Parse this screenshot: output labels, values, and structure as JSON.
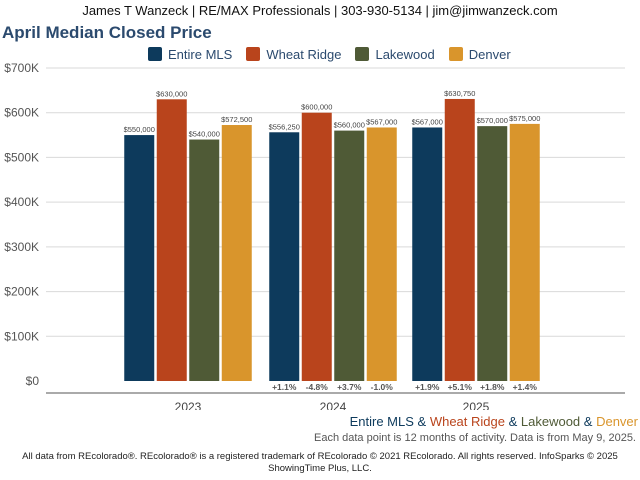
{
  "header": {
    "text": "James T Wanzeck | RE/MAX Professionals | 303-930-5134 | jim@jimwanzeck.com"
  },
  "chart_data": {
    "type": "bar",
    "title": "April Median Closed Price",
    "categories": [
      "2023",
      "2024",
      "2025"
    ],
    "series": [
      {
        "name": "Entire MLS",
        "color": "#0d3a5c",
        "values": [
          550000,
          556250,
          567000
        ],
        "labels": [
          "$550,000",
          "$556,250",
          "$567,000"
        ],
        "changes": [
          "",
          "+1.1%",
          "+1.9%"
        ]
      },
      {
        "name": "Wheat Ridge",
        "color": "#b9441c",
        "values": [
          630000,
          600000,
          630750
        ],
        "labels": [
          "$630,000",
          "$600,000",
          "$630,750"
        ],
        "changes": [
          "",
          "-4.8%",
          "+5.1%"
        ]
      },
      {
        "name": "Lakewood",
        "color": "#4f5a36",
        "values": [
          540000,
          560000,
          570000
        ],
        "labels": [
          "$540,000",
          "$560,000",
          "$570,000"
        ],
        "changes": [
          "",
          "+3.7%",
          "+1.8%"
        ]
      },
      {
        "name": "Denver",
        "color": "#d9952c",
        "values": [
          572500,
          567000,
          575000
        ],
        "labels": [
          "$572,500",
          "$567,000",
          "$575,000"
        ],
        "changes": [
          "",
          "-1.0%",
          "+1.4%"
        ]
      }
    ],
    "ylim": [
      0,
      700000
    ],
    "yticks": [
      0,
      100000,
      200000,
      300000,
      400000,
      500000,
      600000,
      700000
    ],
    "ytick_labels": [
      "$0",
      "$100K",
      "$200K",
      "$300K",
      "$400K",
      "$500K",
      "$600K",
      "$700K"
    ],
    "grid": true,
    "legend": "top"
  },
  "subtitle": {
    "parts": [
      {
        "text": "Entire MLS",
        "color": "#0d3a5c"
      },
      {
        "text": " & ",
        "color": "#0d3a5c"
      },
      {
        "text": "Wheat Ridge",
        "color": "#b9441c"
      },
      {
        "text": " & ",
        "color": "#0d3a5c"
      },
      {
        "text": "Lakewood",
        "color": "#4f5a36"
      },
      {
        "text": " & ",
        "color": "#0d3a5c"
      },
      {
        "text": "Denver",
        "color": "#d9952c"
      }
    ]
  },
  "note": "Each data point is 12 months of activity. Data is from May 9, 2025.",
  "footer": {
    "line1": "All data from REcolorado®. REcolorado® is a registered trademark of REcolorado © 2021 REcolorado. All rights reserved. InfoSparks © 2025",
    "line2": "ShowingTime Plus, LLC."
  }
}
